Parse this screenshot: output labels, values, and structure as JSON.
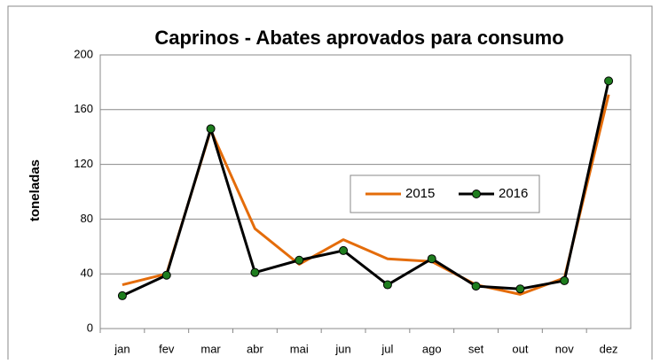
{
  "chart_data": {
    "type": "line",
    "title": "Caprinos - Abates aprovados para consumo",
    "ylabel": "toneladas",
    "categories": [
      "jan",
      "fev",
      "mar",
      "abr",
      "mai",
      "jun",
      "jul",
      "ago",
      "set",
      "out",
      "nov",
      "dez"
    ],
    "series": [
      {
        "name": "2015",
        "color": "#e46c0a",
        "marker": false,
        "values": [
          32,
          40,
          145,
          73,
          47,
          65,
          51,
          49,
          32,
          25,
          37,
          171
        ]
      },
      {
        "name": "2016",
        "color": "#000000",
        "marker": true,
        "marker_color": "#1e7d1e",
        "values": [
          24,
          39,
          146,
          41,
          50,
          57,
          32,
          51,
          31,
          29,
          35,
          181
        ]
      }
    ],
    "ylim": [
      0,
      200
    ],
    "yticks": [
      0,
      40,
      80,
      120,
      160,
      200
    ],
    "grid": true
  }
}
